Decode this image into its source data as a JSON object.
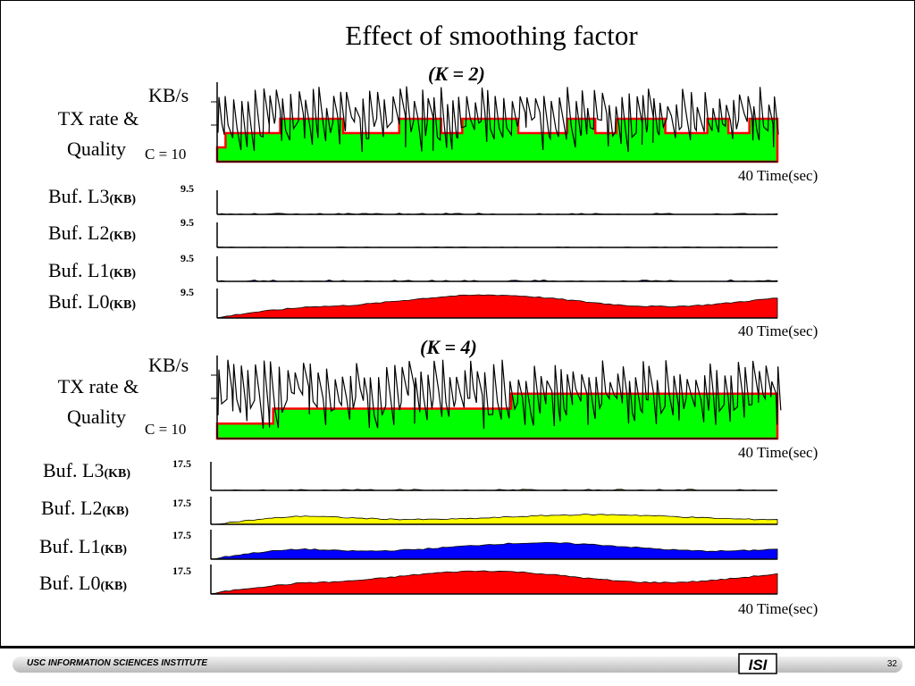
{
  "slide": {
    "title": "Effect of smoothing factor",
    "page_number": "32"
  },
  "footer": {
    "institute": "USC INFORMATION SCIENCES INSTITUTE",
    "logo_text": "ISI"
  },
  "units": {
    "kb": "(KB)"
  },
  "colors": {
    "green": "#00ff00",
    "red": "#ff0000",
    "blue": "#0000ff",
    "yellow": "#ffff00"
  },
  "chart_data": [
    {
      "panel": "K2",
      "k_label": "(K = 2)",
      "tx": {
        "ylabel": "KB/s",
        "series_label_1": "TX rate &",
        "series_label_2": "Quality",
        "c_label": "C = 10",
        "x_label": "40 Time(sec)",
        "type": "step",
        "quality_levels": [
          2,
          3,
          4
        ],
        "quality_step_seconds": [
          0.0,
          0.6,
          4.5,
          9.0,
          13.0,
          16.0,
          17.5,
          20.0,
          21.5,
          25.0,
          27.0,
          28.5,
          32.0,
          35.0,
          36.5,
          38.0
        ],
        "quality_step_values": [
          1,
          2,
          3,
          2,
          3,
          2,
          3,
          3,
          2,
          3,
          2,
          3,
          2,
          3,
          2,
          3
        ]
      },
      "buffers": [
        {
          "name": "Buf. L3",
          "unit": "(KB)",
          "ymax_label": "9.5",
          "type": "area",
          "level_fraction": 0.05
        },
        {
          "name": "Buf. L2",
          "unit": "(KB)",
          "ymax_label": "9.5",
          "type": "area",
          "level_fraction": 0.02
        },
        {
          "name": "Buf. L1",
          "unit": "(KB)",
          "ymax_label": "9.5",
          "type": "area",
          "level_fraction": 0.06
        },
        {
          "name": "Buf. L0",
          "unit": "(KB)",
          "ymax_label": "9.5",
          "type": "area",
          "level_fraction": 0.78
        }
      ],
      "buf_x_label": "40 Time(sec)"
    },
    {
      "panel": "K4",
      "k_label": "(K = 4)",
      "tx": {
        "ylabel": "KB/s",
        "series_label_1": "TX rate &",
        "series_label_2": "Quality",
        "c_label": "C = 10",
        "x_label": "40 Time(sec)",
        "type": "step",
        "quality_levels": [
          2,
          3
        ],
        "quality_step_seconds": [
          0.0,
          0.5,
          4.0,
          21.0,
          35.0
        ],
        "quality_step_values": [
          1,
          1,
          2,
          3,
          3
        ]
      },
      "buffers": [
        {
          "name": "Buf. L3",
          "unit": "(KB)",
          "ymax_label": "17.5",
          "type": "area",
          "level_fraction": 0.04
        },
        {
          "name": "Buf. L2",
          "unit": "(KB)",
          "ymax_label": "17.5",
          "type": "area",
          "level_fraction": 0.35
        },
        {
          "name": "Buf. L1",
          "unit": "(KB)",
          "ymax_label": "17.5",
          "type": "area",
          "level_fraction": 0.55
        },
        {
          "name": "Buf. L0",
          "unit": "(KB)",
          "ymax_label": "17.5",
          "type": "area",
          "level_fraction": 0.78
        }
      ],
      "buf_x_label": "40 Time(sec)"
    }
  ]
}
